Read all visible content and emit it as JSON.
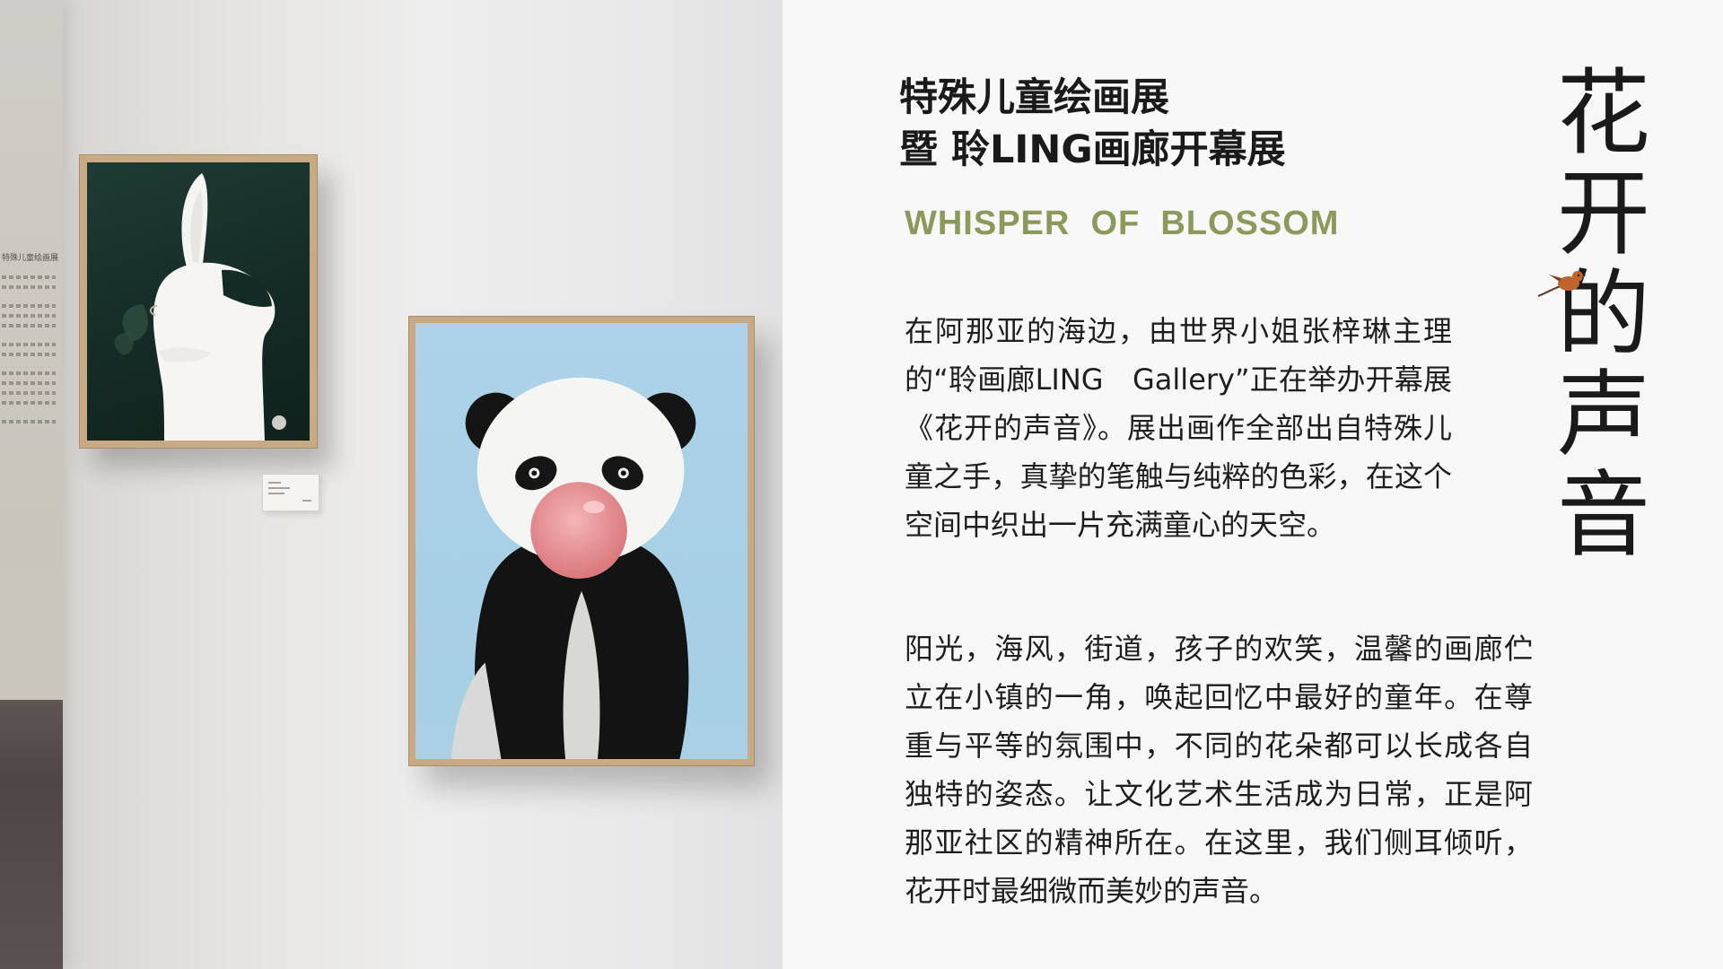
{
  "page": {
    "title_line1": "特殊儿童绘画展",
    "title_line2": "暨 聆LING画廊开幕展",
    "subtitle": "WHISPER  OF  BLOSSOM",
    "vertical_title": [
      "花",
      "开",
      "的",
      "声",
      "音"
    ],
    "paragraph1": "在阿那亚的海边，由世界小姐张梓琳主理的“聆画廊LING　Gallery”正在举办开幕展《花开的声音》。展出画作全部出自特殊儿童之手，真挚的笔触与纯粹的色彩，在这个空间中织出一片充满童心的天空。",
    "paragraph2": "阳光，海风，街道，孩子的欢笑，温馨的画廊伫立在小镇的一角，唤起回忆中最好的童年。在尊重与平等的氛围中，不同的花朵都可以长成各自独特的姿态。让文化艺术生活成为日常，正是阿那亚社区的精神所在。在这里，我们侧耳倾听，花开时最细微而美妙的声音。"
  },
  "photo": {
    "corner_wall_title": "特殊儿童绘画展"
  },
  "colors": {
    "accent_subtitle": "#8b9a5b",
    "text": "#1e1e1e",
    "background": "#f8f8f8"
  }
}
